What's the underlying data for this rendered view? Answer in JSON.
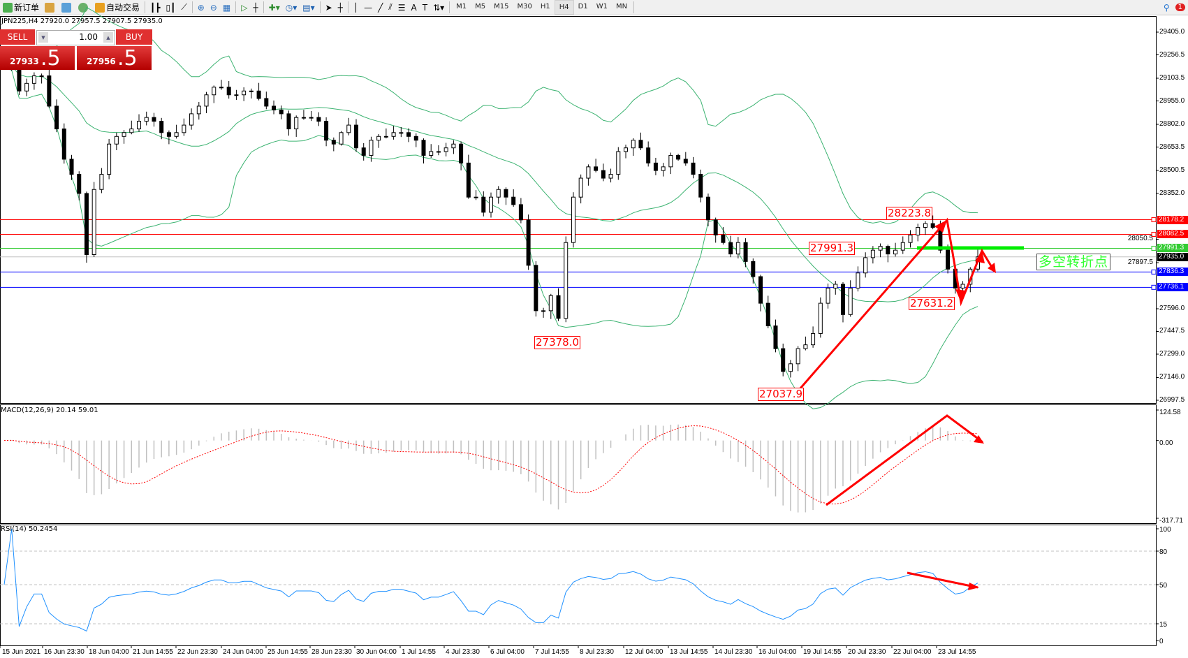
{
  "toolbar": {
    "new_order": "新订单",
    "auto_trading": "自动交易",
    "timeframes": [
      "M1",
      "M5",
      "M15",
      "M30",
      "H1",
      "H4",
      "D1",
      "W1",
      "MN"
    ],
    "active_timeframe": "H4",
    "notification_count": "1"
  },
  "chart_header": "JPN225,H4  27920.0 27957.5 27907.5 27935.0",
  "one_click": {
    "sell_label": "SELL",
    "buy_label": "BUY",
    "lots": "1.00",
    "sell_price_small": "27933",
    "sell_price_big": ".5",
    "buy_price_small": "27956",
    "buy_price_big": ".5"
  },
  "colors": {
    "bullish": "#ffffff",
    "bearish": "#000000",
    "bands": "#3cb371",
    "macd_signal": "#ff0000",
    "macd_hist": "#c0c0c0",
    "rsi": "#1e90ff",
    "annotation": "#ff0000",
    "pivot": "#00ee00"
  },
  "chart_data": {
    "type": "candlestick",
    "symbol": "JPN225",
    "timeframe": "H4",
    "price_axis": [
      "29405.0",
      "29256.5",
      "29103.5",
      "28955.0",
      "28802.0",
      "28653.5",
      "28500.5",
      "28352.0",
      "28050.5",
      "27897.5",
      "27596.0",
      "27447.5",
      "27299.0",
      "27146.0",
      "26997.5"
    ],
    "ylim": [
      26997.5,
      29405.0
    ],
    "closes": [
      29169,
      29194,
      29020,
      29070,
      29119,
      29119,
      28921,
      28772,
      28574,
      28475,
      28350,
      27950,
      28376,
      28475,
      28673,
      28723,
      28748,
      28772,
      28822,
      28847,
      28822,
      28748,
      28723,
      28748,
      28797,
      28871,
      28921,
      28995,
      29045,
      29045,
      28995,
      28995,
      29020,
      29020,
      28971,
      28921,
      28896,
      28871,
      28772,
      28847,
      28847,
      28847,
      28822,
      28698,
      28673,
      28748,
      28797,
      28648,
      28599,
      28698,
      28723,
      28723,
      28748,
      28748,
      28723,
      28698,
      28599,
      28624,
      28624,
      28648,
      28673,
      28549,
      28326,
      28326,
      28227,
      28326,
      28376,
      28326,
      28277,
      28177,
      27880,
      27583,
      27583,
      27682,
      27533,
      28029,
      28326,
      28450,
      28524,
      28500,
      28450,
      28475,
      28624,
      28648,
      28698,
      28648,
      28549,
      28500,
      28524,
      28599,
      28574,
      28549,
      28475,
      28326,
      28177,
      28078,
      28029,
      27954,
      28029,
      27905,
      27806,
      27632,
      27484,
      27335,
      27186,
      27236,
      27335,
      27360,
      27434,
      27632,
      27731,
      27756,
      27558,
      27731,
      27830,
      27930,
      27979,
      28004,
      27954,
      27979,
      28029,
      28078,
      28128,
      28153,
      28128,
      27979,
      27855,
      27731,
      27756,
      27855,
      27935
    ],
    "price_lines": [
      {
        "value": "28178.2",
        "color": "#ff0000"
      },
      {
        "value": "28082.5",
        "color": "#ff0000"
      },
      {
        "value": "27991.3",
        "color": "#33cc33"
      },
      {
        "value": "27935.0",
        "color": "#000000",
        "type": "bid"
      },
      {
        "value": "27836.3",
        "color": "#0000ff"
      },
      {
        "value": "27736.1",
        "color": "#0000ff"
      }
    ],
    "price_labels": [
      "28223.8",
      "27991.3",
      "27378.0",
      "27037.9",
      "27631.2"
    ],
    "annotation_text": "多空转折点",
    "time_axis": [
      "15 Jun 2021",
      "16 Jun 23:30",
      "18 Jun 04:00",
      "21 Jun 14:55",
      "22 Jun 23:30",
      "24 Jun 04:00",
      "25 Jun 14:55",
      "28 Jun 23:30",
      "30 Jun 04:00",
      "1 Jul 14:55",
      "4 Jul 23:30",
      "6 Jul 04:00",
      "7 Jul 14:55",
      "8 Jul 23:30",
      "12 Jul 04:00",
      "13 Jul 14:55",
      "14 Jul 23:30",
      "16 Jul 04:00",
      "19 Jul 14:55",
      "20 Jul 23:30",
      "22 Jul 04:00",
      "23 Jul 14:55"
    ],
    "macd": {
      "label": "MACD(12,26,9) 20.14 59.01",
      "axis": [
        "124.58",
        "0.00",
        "-317.71"
      ],
      "ylim": [
        -317.71,
        124.58
      ]
    },
    "rsi": {
      "label": "RSI(14) 50.2454",
      "axis": [
        "100",
        "80",
        "50",
        "15",
        "0"
      ],
      "levels": [
        80,
        50,
        15
      ]
    }
  }
}
